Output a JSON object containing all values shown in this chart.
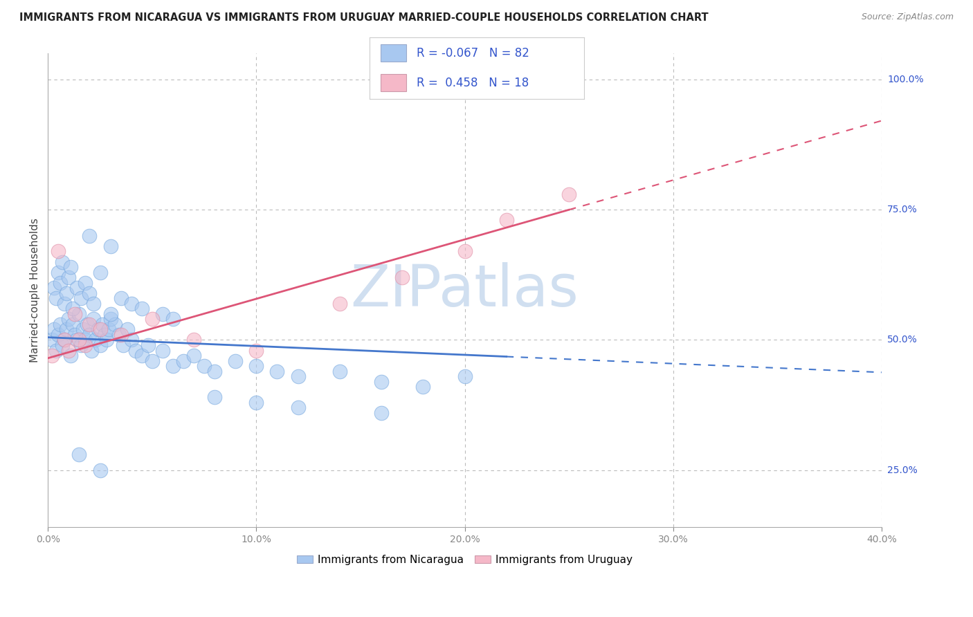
{
  "title": "IMMIGRANTS FROM NICARAGUA VS IMMIGRANTS FROM URUGUAY MARRIED-COUPLE HOUSEHOLDS CORRELATION CHART",
  "source": "Source: ZipAtlas.com",
  "xlabel_nicaragua": "Immigrants from Nicaragua",
  "xlabel_uruguay": "Immigrants from Uruguay",
  "ylabel": "Married-couple Households",
  "xlim": [
    0.0,
    40.0
  ],
  "ylim": [
    14.0,
    105.0
  ],
  "yticks": [
    25.0,
    50.0,
    75.0,
    100.0
  ],
  "xticks": [
    0.0,
    10.0,
    20.0,
    30.0,
    40.0
  ],
  "color_nicaragua": "#a8c8f0",
  "color_uruguay": "#f5b8c8",
  "color_trendline_nicaragua": "#4477cc",
  "color_trendline_uruguay": "#dd5577",
  "legend_text_color": "#3355cc",
  "watermark_color": "#d0dff0",
  "R_nicaragua": -0.067,
  "N_nicaragua": 82,
  "R_uruguay": 0.458,
  "N_uruguay": 18,
  "nic_x": [
    0.2,
    0.3,
    0.4,
    0.5,
    0.6,
    0.7,
    0.8,
    0.9,
    1.0,
    1.1,
    1.2,
    1.3,
    1.4,
    1.5,
    1.6,
    1.7,
    1.8,
    1.9,
    2.0,
    2.1,
    2.2,
    2.3,
    2.4,
    2.5,
    2.6,
    2.7,
    2.8,
    2.9,
    3.0,
    3.2,
    3.4,
    3.6,
    3.8,
    4.0,
    4.2,
    4.5,
    4.8,
    5.0,
    5.5,
    6.0,
    6.5,
    7.0,
    7.5,
    8.0,
    9.0,
    10.0,
    11.0,
    12.0,
    14.0,
    16.0,
    18.0,
    20.0,
    0.3,
    0.4,
    0.5,
    0.6,
    0.7,
    0.8,
    0.9,
    1.0,
    1.1,
    1.2,
    1.4,
    1.6,
    1.8,
    2.0,
    2.2,
    2.5,
    3.0,
    3.5,
    4.0,
    4.5,
    5.5,
    6.0,
    8.0,
    10.0,
    12.0,
    16.0,
    2.0,
    3.0,
    2.5,
    1.5
  ],
  "nic_y": [
    50.0,
    52.0,
    48.0,
    51.0,
    53.0,
    49.0,
    50.0,
    52.0,
    54.0,
    47.0,
    53.0,
    51.0,
    50.0,
    55.0,
    49.0,
    52.0,
    50.0,
    53.0,
    51.0,
    48.0,
    54.0,
    50.0,
    52.0,
    49.0,
    53.0,
    51.0,
    50.0,
    52.0,
    54.0,
    53.0,
    51.0,
    49.0,
    52.0,
    50.0,
    48.0,
    47.0,
    49.0,
    46.0,
    48.0,
    45.0,
    46.0,
    47.0,
    45.0,
    44.0,
    46.0,
    45.0,
    44.0,
    43.0,
    44.0,
    42.0,
    41.0,
    43.0,
    60.0,
    58.0,
    63.0,
    61.0,
    65.0,
    57.0,
    59.0,
    62.0,
    64.0,
    56.0,
    60.0,
    58.0,
    61.0,
    59.0,
    57.0,
    63.0,
    55.0,
    58.0,
    57.0,
    56.0,
    55.0,
    54.0,
    39.0,
    38.0,
    37.0,
    36.0,
    70.0,
    68.0,
    25.0,
    28.0
  ],
  "uru_x": [
    0.2,
    0.5,
    0.8,
    1.0,
    1.3,
    1.8,
    2.0,
    2.5,
    3.5,
    5.0,
    7.0,
    10.0,
    14.0,
    17.0,
    20.0,
    22.0,
    25.0,
    1.5
  ],
  "uru_y": [
    47.0,
    67.0,
    50.0,
    48.0,
    55.0,
    49.0,
    53.0,
    52.0,
    51.0,
    54.0,
    50.0,
    48.0,
    57.0,
    62.0,
    67.0,
    73.0,
    78.0,
    50.0
  ],
  "background_color": "#ffffff",
  "grid_color": "#bbbbbb",
  "trendline_nic_x0": 0.0,
  "trendline_nic_y0": 50.5,
  "trendline_nic_x1": 22.0,
  "trendline_nic_y1": 46.8,
  "trendline_nic_dash_x0": 22.0,
  "trendline_nic_dash_x1": 40.0,
  "trendline_uru_x0": 0.0,
  "trendline_uru_y0": 46.5,
  "trendline_uru_x1": 25.0,
  "trendline_uru_y1": 75.0,
  "trendline_uru_dash_x0": 25.0,
  "trendline_uru_dash_x1": 40.0
}
